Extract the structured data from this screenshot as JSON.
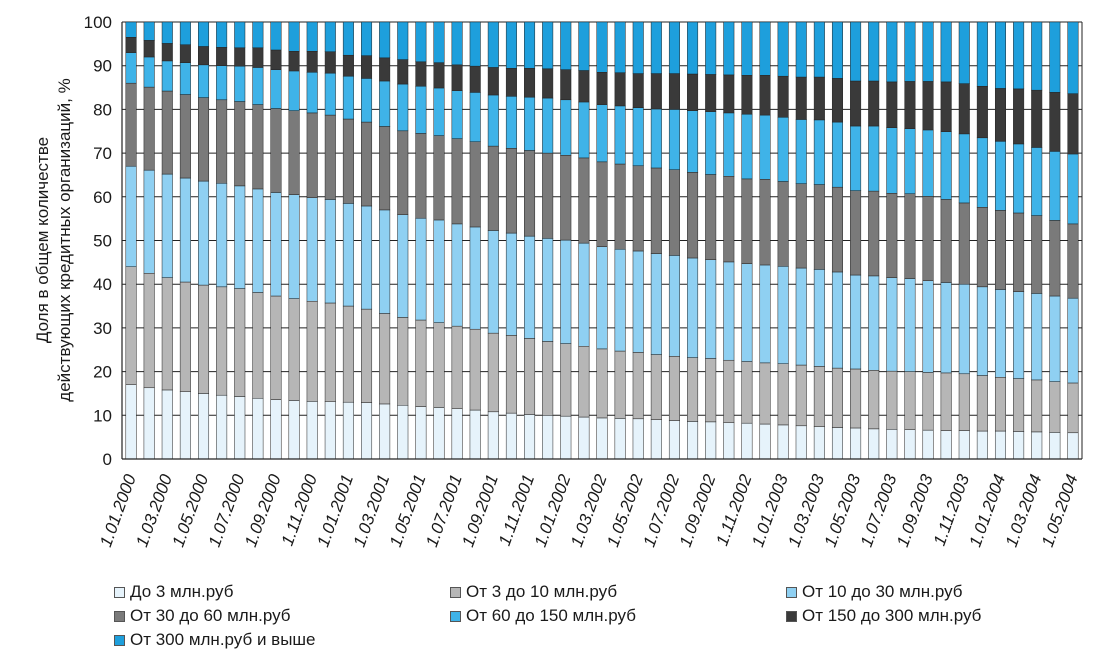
{
  "chart_data": {
    "type": "bar",
    "stacked": true,
    "ylabel_line1": "Доля в общем количестве",
    "ylabel_line2": "действующих кредитных  организаций, %",
    "ylim": [
      0,
      100
    ],
    "yticks": [
      0,
      10,
      20,
      30,
      40,
      50,
      60,
      70,
      80,
      90,
      100
    ],
    "grid": true,
    "legend_position": "bottom",
    "x_tick_labels": [
      "1.01.2000",
      "1.03.2000",
      "1.05.2000",
      "1.07.2000",
      "1.09.2000",
      "1.11.2000",
      "1.01.2001",
      "1.03.2001",
      "1.05.2001",
      "1.07.2001",
      "1.09.2001",
      "1.11.2001",
      "1.01.2002",
      "1.03.2002",
      "1.05.2002",
      "1.07.2002",
      "1.09.2002",
      "1.11.2002",
      "1.01.2003",
      "1.03.2003",
      "1.05.2003",
      "1.07.2003",
      "1.09.2003",
      "1.11.2003",
      "1.01.2004",
      "1.03.2004",
      "1.05.2004"
    ],
    "categories": [
      "1.01.2000",
      "1.02.2000",
      "1.03.2000",
      "1.04.2000",
      "1.05.2000",
      "1.06.2000",
      "1.07.2000",
      "1.08.2000",
      "1.09.2000",
      "1.10.2000",
      "1.11.2000",
      "1.12.2000",
      "1.01.2001",
      "1.02.2001",
      "1.03.2001",
      "1.04.2001",
      "1.05.2001",
      "1.06.2001",
      "1.07.2001",
      "1.08.2001",
      "1.09.2001",
      "1.10.2001",
      "1.11.2001",
      "1.12.2001",
      "1.01.2002",
      "1.02.2002",
      "1.03.2002",
      "1.04.2002",
      "1.05.2002",
      "1.06.2002",
      "1.07.2002",
      "1.08.2002",
      "1.09.2002",
      "1.10.2002",
      "1.11.2002",
      "1.12.2002",
      "1.01.2003",
      "1.02.2003",
      "1.03.2003",
      "1.04.2003",
      "1.05.2003",
      "1.06.2003",
      "1.07.2003",
      "1.08.2003",
      "1.09.2003",
      "1.10.2003",
      "1.11.2003",
      "1.12.2003",
      "1.01.2004",
      "1.02.2004",
      "1.03.2004",
      "1.04.2004",
      "1.05.2004"
    ],
    "series": [
      {
        "name": "До 3 млн.руб",
        "color": "#e6f3fb",
        "values": [
          17.0,
          16.3,
          15.8,
          15.4,
          15.0,
          14.6,
          14.3,
          13.9,
          13.6,
          13.4,
          13.2,
          13.1,
          13.0,
          12.9,
          12.6,
          12.3,
          12.0,
          11.8,
          11.5,
          11.2,
          10.8,
          10.5,
          10.2,
          10.0,
          9.8,
          9.6,
          9.4,
          9.3,
          9.2,
          9.0,
          8.8,
          8.6,
          8.5,
          8.3,
          8.2,
          8.0,
          7.8,
          7.6,
          7.4,
          7.2,
          7.1,
          6.9,
          6.8,
          6.7,
          6.6,
          6.5,
          6.5,
          6.4,
          6.4,
          6.3,
          6.2,
          6.1,
          6.0
        ]
      },
      {
        "name": "От 3 до 10 млн.руб",
        "color": "#b6b6b6",
        "values": [
          27.0,
          26.2,
          25.7,
          25.1,
          24.8,
          24.8,
          24.7,
          24.2,
          23.7,
          23.3,
          22.9,
          22.6,
          22.0,
          21.4,
          20.7,
          20.1,
          19.8,
          19.4,
          18.9,
          18.5,
          18.0,
          17.8,
          17.4,
          16.9,
          16.6,
          16.2,
          15.8,
          15.4,
          15.2,
          14.9,
          14.7,
          14.6,
          14.5,
          14.3,
          14.1,
          14.0,
          14.0,
          13.9,
          13.8,
          13.6,
          13.5,
          13.4,
          13.3,
          13.3,
          13.2,
          13.2,
          13.0,
          12.7,
          12.3,
          12.1,
          11.9,
          11.6,
          11.4
        ]
      },
      {
        "name": "От 10 до 30 млн.руб",
        "color": "#8fd0f2",
        "values": [
          23.0,
          23.6,
          23.7,
          23.8,
          23.8,
          23.7,
          23.5,
          23.7,
          23.7,
          23.8,
          23.7,
          23.7,
          23.5,
          23.6,
          23.7,
          23.5,
          23.3,
          23.5,
          23.4,
          23.4,
          23.5,
          23.4,
          23.4,
          23.6,
          23.7,
          23.6,
          23.4,
          23.3,
          23.2,
          23.1,
          23.1,
          22.8,
          22.6,
          22.5,
          22.4,
          22.4,
          22.3,
          22.2,
          22.2,
          22.0,
          21.5,
          21.6,
          21.4,
          21.3,
          21.0,
          20.7,
          20.5,
          20.3,
          20.1,
          19.9,
          19.8,
          19.6,
          19.4
        ]
      },
      {
        "name": "От 30  до 60 млн.руб",
        "color": "#7a7a7a",
        "values": [
          19.0,
          19.0,
          19.0,
          19.1,
          19.1,
          19.1,
          19.3,
          19.3,
          19.2,
          19.2,
          19.4,
          19.3,
          19.3,
          19.2,
          19.1,
          19.2,
          19.4,
          19.3,
          19.5,
          19.5,
          19.3,
          19.4,
          19.6,
          19.5,
          19.4,
          19.5,
          19.4,
          19.5,
          19.5,
          19.6,
          19.6,
          19.6,
          19.5,
          19.6,
          19.4,
          19.6,
          19.4,
          19.3,
          19.4,
          19.4,
          19.3,
          19.4,
          19.3,
          19.4,
          19.3,
          19.0,
          18.6,
          18.2,
          18.1,
          18.0,
          17.8,
          17.3,
          17.0
        ]
      },
      {
        "name": "От 60  до 150 млн.руб",
        "color": "#3fb3e8",
        "values": [
          7.0,
          6.9,
          6.9,
          7.3,
          7.5,
          7.8,
          8.1,
          8.5,
          8.9,
          9.1,
          9.3,
          9.6,
          9.8,
          10.0,
          10.4,
          10.7,
          10.8,
          10.9,
          11.0,
          11.3,
          11.7,
          11.9,
          12.2,
          12.6,
          12.7,
          12.8,
          13.1,
          13.3,
          13.3,
          13.5,
          13.8,
          14.1,
          14.4,
          14.5,
          14.8,
          14.7,
          14.7,
          14.7,
          14.8,
          14.9,
          14.8,
          14.9,
          15.0,
          14.9,
          15.2,
          15.5,
          15.8,
          15.9,
          15.8,
          15.8,
          15.6,
          15.8,
          16.0
        ]
      },
      {
        "name": "От 150 до 300 млн.руб",
        "color": "#3a3a3a",
        "values": [
          3.5,
          3.8,
          4.0,
          4.1,
          4.2,
          4.2,
          4.2,
          4.5,
          4.5,
          4.5,
          4.8,
          4.9,
          4.8,
          5.2,
          5.3,
          5.6,
          5.6,
          5.8,
          5.9,
          6.0,
          6.3,
          6.4,
          6.6,
          6.7,
          6.9,
          7.2,
          7.4,
          7.6,
          7.8,
          8.1,
          8.2,
          8.4,
          8.5,
          8.7,
          8.9,
          9.1,
          9.4,
          9.7,
          9.8,
          10.0,
          10.3,
          10.3,
          10.5,
          10.8,
          11.1,
          11.4,
          11.5,
          11.8,
          12.1,
          12.6,
          13.1,
          13.5,
          13.8
        ]
      },
      {
        "name": "От 300 млн.руб и выше",
        "color": "#1e9fdc",
        "values": [
          3.5,
          4.2,
          4.9,
          5.2,
          5.6,
          5.8,
          5.9,
          5.9,
          6.4,
          6.7,
          6.7,
          6.8,
          7.6,
          7.7,
          8.2,
          8.6,
          9.1,
          9.3,
          9.8,
          10.1,
          10.4,
          10.6,
          10.6,
          10.7,
          10.9,
          11.1,
          11.5,
          11.6,
          11.8,
          11.8,
          11.8,
          11.9,
          12.0,
          12.1,
          12.2,
          12.2,
          12.4,
          12.6,
          12.6,
          12.9,
          13.5,
          13.5,
          13.7,
          13.6,
          13.6,
          13.7,
          14.1,
          14.7,
          15.2,
          15.3,
          15.6,
          16.1,
          16.4
        ]
      }
    ]
  },
  "legend": {
    "items": [
      {
        "label": "До 3 млн.руб",
        "color": "#e6f3fb"
      },
      {
        "label": "От 3 до 10 млн.руб",
        "color": "#b6b6b6"
      },
      {
        "label": "От 10 до 30 млн.руб",
        "color": "#8fd0f2"
      },
      {
        "label": "От 30  до 60 млн.руб",
        "color": "#7a7a7a"
      },
      {
        "label": "От 60  до 150 млн.руб",
        "color": "#3fb3e8"
      },
      {
        "label": "От 150 до 300 млн.руб",
        "color": "#3a3a3a"
      },
      {
        "label": "От 300 млн.руб и выше",
        "color": "#1e9fdc"
      }
    ]
  }
}
